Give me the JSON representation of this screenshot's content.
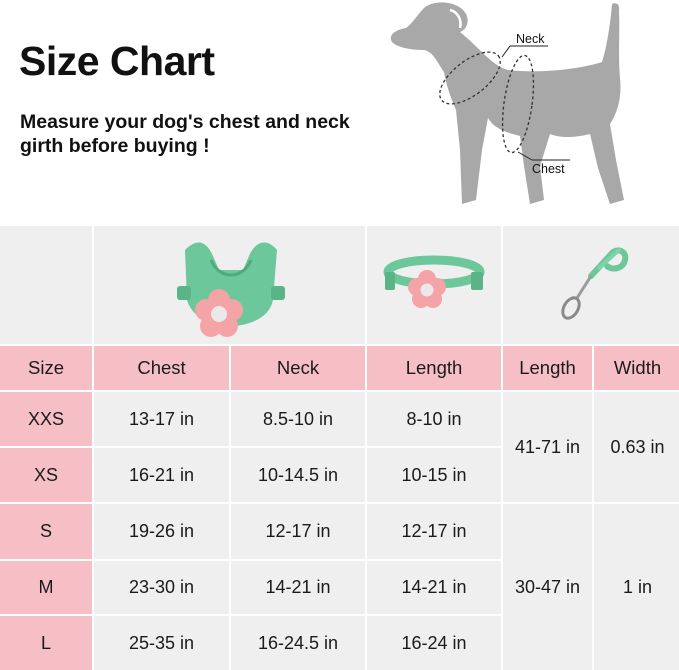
{
  "title": "Size Chart",
  "subtitle": "Measure your dog's chest and neck girth before buying !",
  "diagram": {
    "neck_label": "Neck",
    "chest_label": "Chest"
  },
  "colors": {
    "header_pink": "#f6bfc6",
    "cell_gray": "#efefef",
    "product_green": "#6cc79a",
    "flower_pink": "#f4a3a7",
    "dog_gray": "#a8a8a8"
  },
  "products": {
    "harness_icon": "harness-with-flower",
    "collar_icon": "collar-with-flower",
    "leash_icon": "leash-with-clip"
  },
  "table": {
    "headers": [
      "Size",
      "Chest",
      "Neck",
      "Length",
      "Length",
      "Width"
    ],
    "rows": [
      {
        "size": "XXS",
        "chest": "13-17 in",
        "neck": "8.5-10 in",
        "length": "8-10 in"
      },
      {
        "size": "XS",
        "chest": "16-21 in",
        "neck": "10-14.5 in",
        "length": "10-15 in"
      },
      {
        "size": "S",
        "chest": "19-26 in",
        "neck": "12-17 in",
        "length": "12-17 in"
      },
      {
        "size": "M",
        "chest": "23-30 in",
        "neck": "14-21 in",
        "length": "14-21 in"
      },
      {
        "size": "L",
        "chest": "25-35 in",
        "neck": "16-24.5 in",
        "length": "16-24 in"
      }
    ],
    "leash_groups": [
      {
        "length": "41-71 in",
        "width": "0.63 in"
      },
      {
        "length": "30-47 in",
        "width": "1 in"
      }
    ]
  }
}
